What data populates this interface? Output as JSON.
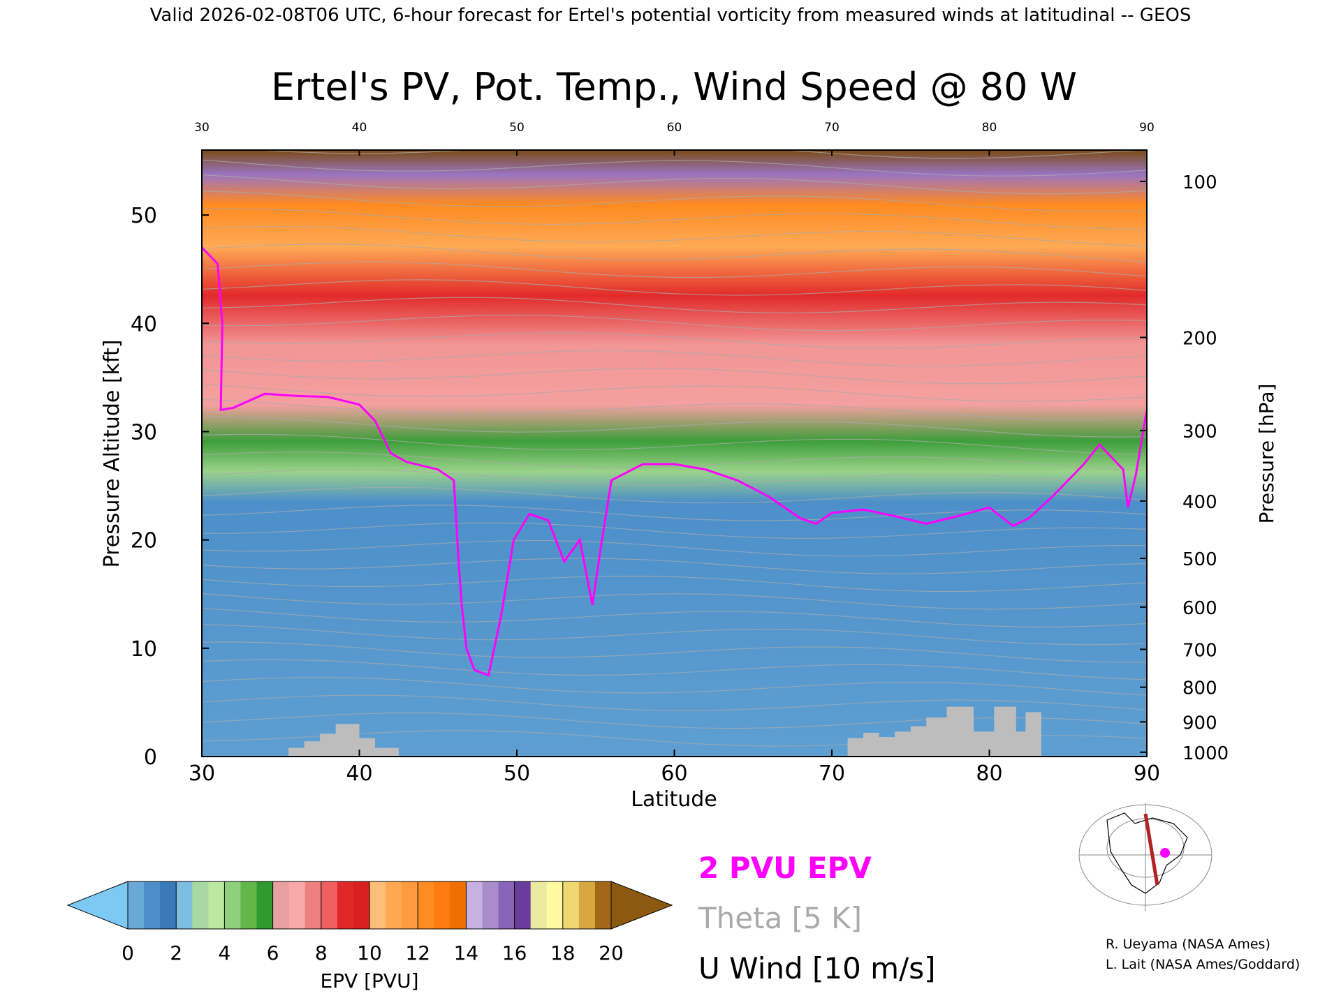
{
  "header": {
    "valid_line": "Valid 2026-02-08T06 UTC, 6-hour forecast for Ertel's potential vorticity from measured winds at latitudinal -- GEOS"
  },
  "chart_data": {
    "type": "heatmap",
    "title": "Ertel's PV, Pot. Temp., Wind Speed @ 80 W",
    "xlabel": "Latitude",
    "ylabel": "Pressure Altitude [kft]",
    "y2label": "Pressure [hPa]",
    "xlim": [
      30,
      90
    ],
    "ylim": [
      0,
      56
    ],
    "x_ticks": [
      30,
      40,
      50,
      60,
      70,
      80,
      90
    ],
    "top_x_ticks": [
      30,
      40,
      50,
      60,
      70,
      80,
      90
    ],
    "y_ticks": [
      0,
      10,
      20,
      30,
      40,
      50
    ],
    "pressure_ticks": [
      {
        "hpa": 100,
        "kft": 53.1
      },
      {
        "hpa": 200,
        "kft": 38.7
      },
      {
        "hpa": 300,
        "kft": 30.1
      },
      {
        "hpa": 400,
        "kft": 23.6
      },
      {
        "hpa": 500,
        "kft": 18.3
      },
      {
        "hpa": 600,
        "kft": 13.8
      },
      {
        "hpa": 700,
        "kft": 9.9
      },
      {
        "hpa": 800,
        "kft": 6.4
      },
      {
        "hpa": 900,
        "kft": 3.2
      },
      {
        "hpa": 1000,
        "kft": 0.4
      }
    ],
    "pv_2pvu_line": [
      [
        30,
        47
      ],
      [
        31,
        45.5
      ],
      [
        31.3,
        40
      ],
      [
        31.2,
        32
      ],
      [
        32,
        32.2
      ],
      [
        34,
        33.5
      ],
      [
        36,
        33.3
      ],
      [
        38,
        33.2
      ],
      [
        40,
        32.5
      ],
      [
        41,
        31
      ],
      [
        42,
        28
      ],
      [
        43,
        27.2
      ],
      [
        45,
        26.5
      ],
      [
        46,
        25.5
      ],
      [
        46.3,
        18
      ],
      [
        46.5,
        14
      ],
      [
        46.8,
        10
      ],
      [
        47.3,
        8
      ],
      [
        48.2,
        7.5
      ],
      [
        49,
        13
      ],
      [
        49.8,
        20
      ],
      [
        50.8,
        22.4
      ],
      [
        52,
        21.8
      ],
      [
        53,
        18
      ],
      [
        54,
        20
      ],
      [
        54.8,
        14
      ],
      [
        55.3,
        19
      ],
      [
        56,
        25.5
      ],
      [
        58,
        27
      ],
      [
        60,
        27
      ],
      [
        62,
        26.5
      ],
      [
        64,
        25.5
      ],
      [
        66,
        24
      ],
      [
        68,
        22
      ],
      [
        69,
        21.5
      ],
      [
        70,
        22.5
      ],
      [
        72,
        22.8
      ],
      [
        74,
        22.2
      ],
      [
        76,
        21.5
      ],
      [
        78,
        22.2
      ],
      [
        80,
        23
      ],
      [
        81.5,
        21.3
      ],
      [
        82.5,
        22
      ],
      [
        84,
        24
      ],
      [
        86,
        27
      ],
      [
        87,
        28.8
      ],
      [
        88.5,
        26.5
      ],
      [
        88.8,
        23
      ],
      [
        89.3,
        26
      ],
      [
        90,
        32
      ]
    ],
    "surface_terrain": [
      [
        35.5,
        0
      ],
      [
        35.5,
        0.8
      ],
      [
        36.5,
        0.8
      ],
      [
        36.5,
        1.4
      ],
      [
        37.5,
        1.4
      ],
      [
        37.5,
        2.1
      ],
      [
        38.5,
        2.1
      ],
      [
        38.5,
        3
      ],
      [
        40,
        3
      ],
      [
        40,
        1.7
      ],
      [
        41,
        1.7
      ],
      [
        41,
        0.8
      ],
      [
        42.5,
        0.8
      ],
      [
        42.5,
        0
      ],
      [
        71,
        0
      ],
      [
        71,
        1.7
      ],
      [
        72,
        1.7
      ],
      [
        72,
        2.2
      ],
      [
        73,
        2.2
      ],
      [
        73,
        1.8
      ],
      [
        74,
        1.8
      ],
      [
        74,
        2.3
      ],
      [
        75,
        2.3
      ],
      [
        75,
        2.8
      ],
      [
        76,
        2.8
      ],
      [
        76,
        3.6
      ],
      [
        77.3,
        3.6
      ],
      [
        77.3,
        4.6
      ],
      [
        79,
        4.6
      ],
      [
        79,
        2.3
      ],
      [
        80.3,
        2.3
      ],
      [
        80.3,
        4.6
      ],
      [
        81.7,
        4.6
      ],
      [
        81.7,
        2.3
      ],
      [
        82.3,
        2.3
      ],
      [
        82.3,
        4.1
      ],
      [
        83.3,
        4.1
      ],
      [
        83.3,
        0
      ]
    ],
    "legend": {
      "pv_label": "2 PVU EPV",
      "theta_label": "Theta [5 K]",
      "wind_label": "U Wind [10 m/s]",
      "pv_color": "#ff00ff",
      "theta_color": "#aaaaaa",
      "wind_color": "#000000"
    },
    "colorbar": {
      "label": "EPV [PVU]",
      "ticks": [
        0,
        2,
        4,
        6,
        8,
        10,
        12,
        14,
        16,
        18,
        20
      ],
      "min_color": "#7ec8f4",
      "max_color": "#8b5a10",
      "colors": [
        [
          "#6aa8d6",
          "#4e8ec8",
          "#3a7abb"
        ],
        [
          "#7cbde0",
          "#a8d9a0",
          "#bde8a2"
        ],
        [
          "#8ed07c",
          "#62b64a",
          "#2e9a30"
        ],
        [
          "#e8a0a0",
          "#f7a8a8",
          "#f08080"
        ],
        [
          "#f06060",
          "#e02828",
          "#d82020"
        ],
        [
          "#ffbe78",
          "#ffa850",
          "#ff9a40"
        ],
        [
          "#ff8c20",
          "#ff7a10",
          "#ee7000"
        ],
        [
          "#c8b0e0",
          "#a88ccc",
          "#8a64b8"
        ],
        [
          "#6a3c9c",
          "#eaeaa0",
          "#fffaa0"
        ],
        [
          "#f0d870",
          "#d8a840",
          "#a06818"
        ]
      ]
    }
  },
  "credits": {
    "line1": "R. Ueyama (NASA Ames)",
    "line2": "L. Lait (NASA Ames/Goddard)"
  },
  "map_inset": {
    "marker_color": "#ff00ff",
    "track_color": "#b22222"
  }
}
